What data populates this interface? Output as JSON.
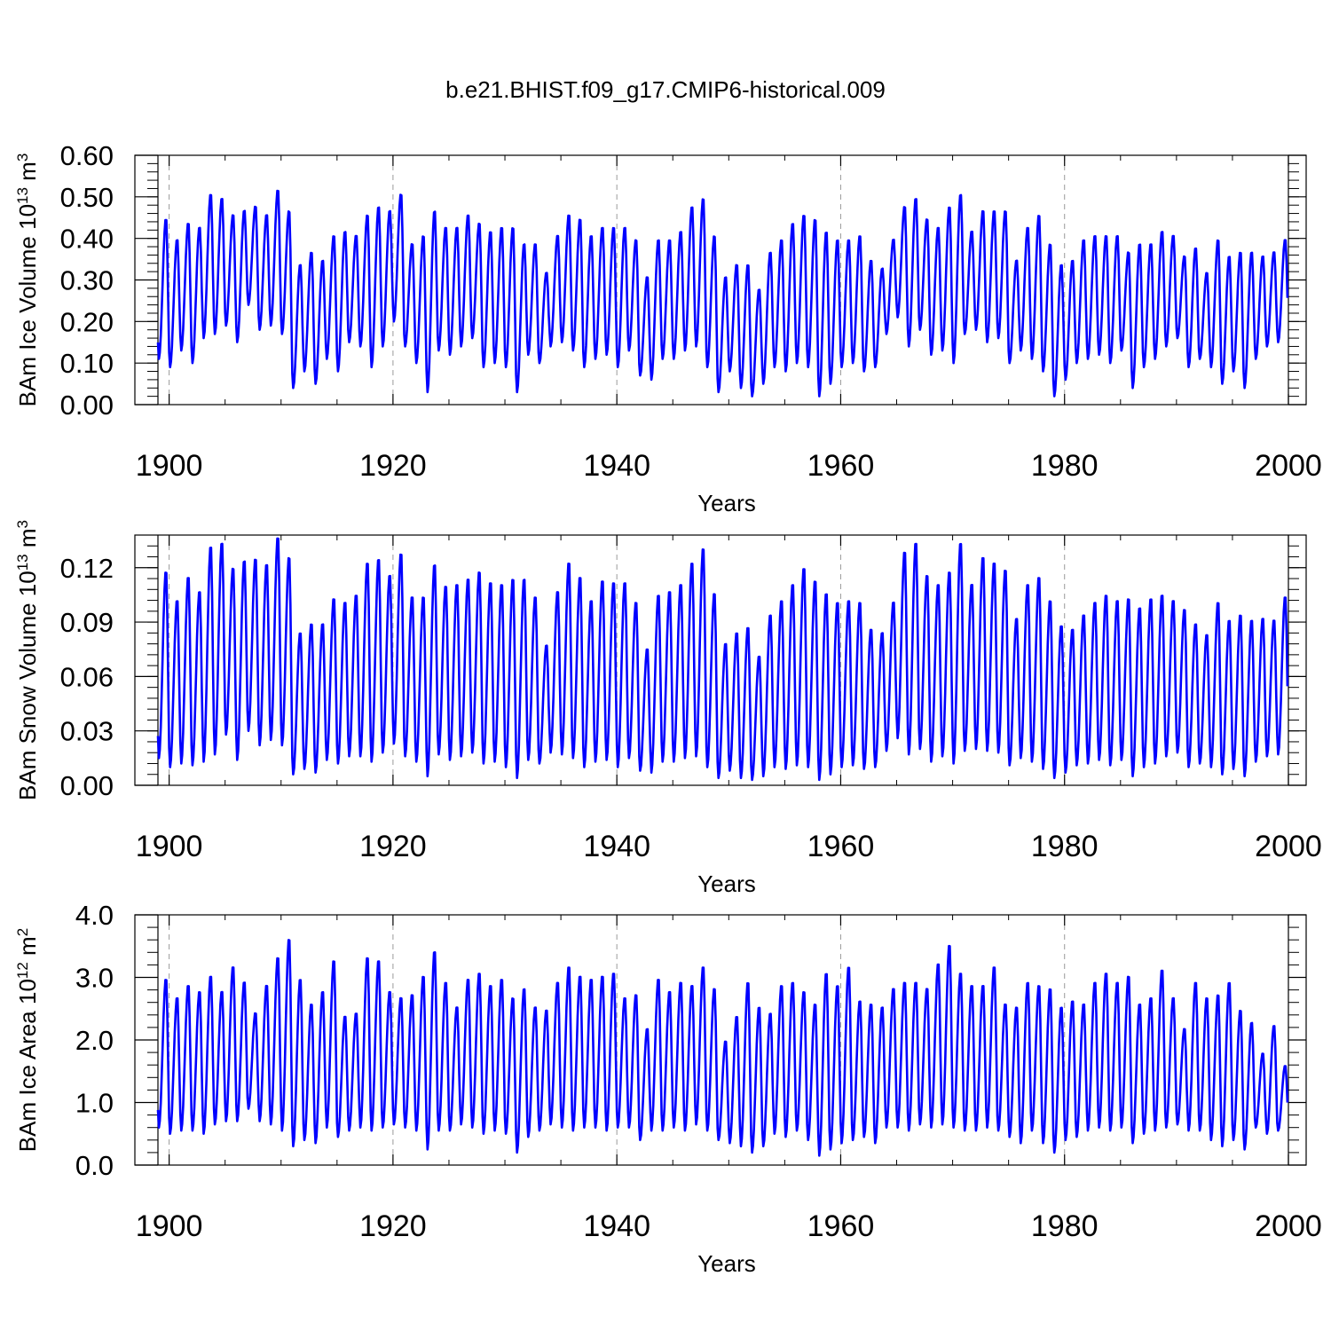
{
  "figure_title": "b.e21.BHIST.f09_g17.CMIP6-historical.009",
  "colors": {
    "line": "#0000ff",
    "axis": "#000000",
    "grid": "#9a9a9a",
    "background": "#ffffff"
  },
  "chart_data": [
    {
      "type": "line",
      "title": "",
      "xlabel": "Years",
      "ylabel": {
        "text": "BAm Ice Volume 10",
        "exponent": "13",
        "unit": " m",
        "unit_exponent": "3"
      },
      "xlim": [
        1899,
        2000
      ],
      "ylim": [
        0,
        0.6
      ],
      "xticks": [
        1900,
        1920,
        1940,
        1960,
        1980,
        2000
      ],
      "yticks": [
        0,
        0.1,
        0.2,
        0.3,
        0.4,
        0.5,
        0.6
      ],
      "ytick_labels": [
        "0.00",
        "0.10",
        "0.20",
        "0.30",
        "0.40",
        "0.50",
        "0.60"
      ],
      "grid": "x-dashed",
      "series": [
        {
          "name": "BAm Ice Volume",
          "x_start": 1899.0,
          "x_step": 1.0,
          "value_type": "annual min/max seasonal cycle",
          "maxima": [
            0.45,
            0.4,
            0.44,
            0.43,
            0.51,
            0.5,
            0.46,
            0.47,
            0.48,
            0.46,
            0.52,
            0.47,
            0.34,
            0.37,
            0.35,
            0.41,
            0.42,
            0.41,
            0.46,
            0.48,
            0.47,
            0.51,
            0.39,
            0.41,
            0.47,
            0.43,
            0.43,
            0.46,
            0.44,
            0.42,
            0.43,
            0.43,
            0.39,
            0.39,
            0.32,
            0.41,
            0.46,
            0.45,
            0.41,
            0.43,
            0.43,
            0.43,
            0.4,
            0.31,
            0.4,
            0.4,
            0.42,
            0.48,
            0.5,
            0.41,
            0.31,
            0.34,
            0.34,
            0.28,
            0.37,
            0.4,
            0.44,
            0.46,
            0.45,
            0.42,
            0.4,
            0.4,
            0.41,
            0.35,
            0.33,
            0.4,
            0.48,
            0.5,
            0.45,
            0.43,
            0.48,
            0.51,
            0.42,
            0.47,
            0.47,
            0.47,
            0.35,
            0.43,
            0.46,
            0.39,
            0.34,
            0.35,
            0.4,
            0.41,
            0.41,
            0.41,
            0.37,
            0.39,
            0.39,
            0.42,
            0.41,
            0.36,
            0.38,
            0.32,
            0.4,
            0.36,
            0.37,
            0.37,
            0.36,
            0.37,
            0.4
          ],
          "minima": [
            0.11,
            0.09,
            0.13,
            0.1,
            0.16,
            0.17,
            0.19,
            0.15,
            0.24,
            0.18,
            0.19,
            0.17,
            0.04,
            0.08,
            0.05,
            0.11,
            0.08,
            0.15,
            0.14,
            0.09,
            0.14,
            0.2,
            0.14,
            0.1,
            0.03,
            0.13,
            0.12,
            0.14,
            0.16,
            0.09,
            0.1,
            0.09,
            0.03,
            0.12,
            0.1,
            0.14,
            0.15,
            0.13,
            0.09,
            0.11,
            0.12,
            0.09,
            0.13,
            0.07,
            0.06,
            0.11,
            0.11,
            0.13,
            0.14,
            0.09,
            0.03,
            0.08,
            0.04,
            0.02,
            0.05,
            0.09,
            0.08,
            0.1,
            0.09,
            0.02,
            0.05,
            0.09,
            0.1,
            0.08,
            0.09,
            0.17,
            0.21,
            0.14,
            0.18,
            0.12,
            0.13,
            0.1,
            0.17,
            0.18,
            0.15,
            0.16,
            0.1,
            0.13,
            0.11,
            0.08,
            0.02,
            0.06,
            0.1,
            0.11,
            0.12,
            0.1,
            0.13,
            0.04,
            0.09,
            0.11,
            0.14,
            0.16,
            0.09,
            0.11,
            0.09,
            0.05,
            0.08,
            0.04,
            0.11,
            0.14,
            0.15
          ]
        }
      ]
    },
    {
      "type": "line",
      "title": "",
      "xlabel": "Years",
      "ylabel": {
        "text": "BAm Snow Volume 10",
        "exponent": "13",
        "unit": " m",
        "unit_exponent": "3"
      },
      "xlim": [
        1899,
        2000
      ],
      "ylim": [
        0,
        0.138
      ],
      "xticks": [
        1900,
        1920,
        1940,
        1960,
        1980,
        2000
      ],
      "yticks": [
        0,
        0.03,
        0.06,
        0.09,
        0.12
      ],
      "ytick_labels": [
        "0.00",
        "0.03",
        "0.06",
        "0.09",
        "0.12"
      ],
      "grid": "x-dashed",
      "series": [
        {
          "name": "BAm Snow Volume",
          "x_start": 1899.0,
          "x_step": 1.0,
          "value_type": "annual min/max seasonal cycle",
          "maxima": [
            0.119,
            0.103,
            0.116,
            0.108,
            0.133,
            0.135,
            0.121,
            0.125,
            0.126,
            0.123,
            0.138,
            0.127,
            0.085,
            0.09,
            0.09,
            0.104,
            0.102,
            0.106,
            0.124,
            0.126,
            0.117,
            0.129,
            0.105,
            0.105,
            0.123,
            0.111,
            0.112,
            0.115,
            0.119,
            0.113,
            0.112,
            0.115,
            0.115,
            0.105,
            0.078,
            0.108,
            0.124,
            0.116,
            0.103,
            0.114,
            0.113,
            0.113,
            0.102,
            0.076,
            0.106,
            0.108,
            0.112,
            0.124,
            0.132,
            0.107,
            0.079,
            0.085,
            0.088,
            0.072,
            0.095,
            0.103,
            0.112,
            0.121,
            0.114,
            0.107,
            0.102,
            0.103,
            0.102,
            0.087,
            0.085,
            0.102,
            0.13,
            0.135,
            0.117,
            0.112,
            0.119,
            0.135,
            0.112,
            0.127,
            0.124,
            0.12,
            0.093,
            0.112,
            0.116,
            0.103,
            0.089,
            0.087,
            0.095,
            0.102,
            0.106,
            0.103,
            0.104,
            0.099,
            0.104,
            0.106,
            0.103,
            0.098,
            0.09,
            0.084,
            0.102,
            0.092,
            0.095,
            0.092,
            0.093,
            0.092,
            0.105
          ],
          "minima": [
            0.015,
            0.01,
            0.012,
            0.011,
            0.013,
            0.017,
            0.028,
            0.014,
            0.03,
            0.022,
            0.025,
            0.022,
            0.006,
            0.009,
            0.007,
            0.014,
            0.012,
            0.016,
            0.016,
            0.013,
            0.018,
            0.023,
            0.016,
            0.013,
            0.005,
            0.017,
            0.014,
            0.016,
            0.018,
            0.012,
            0.013,
            0.01,
            0.004,
            0.014,
            0.012,
            0.018,
            0.017,
            0.015,
            0.01,
            0.013,
            0.014,
            0.01,
            0.015,
            0.008,
            0.007,
            0.013,
            0.013,
            0.015,
            0.016,
            0.01,
            0.004,
            0.008,
            0.004,
            0.003,
            0.005,
            0.01,
            0.009,
            0.011,
            0.01,
            0.003,
            0.006,
            0.01,
            0.011,
            0.009,
            0.01,
            0.019,
            0.026,
            0.017,
            0.02,
            0.013,
            0.016,
            0.012,
            0.019,
            0.02,
            0.019,
            0.018,
            0.011,
            0.015,
            0.013,
            0.009,
            0.004,
            0.007,
            0.011,
            0.012,
            0.014,
            0.011,
            0.014,
            0.005,
            0.01,
            0.012,
            0.016,
            0.018,
            0.01,
            0.012,
            0.01,
            0.006,
            0.009,
            0.005,
            0.013,
            0.016,
            0.017
          ]
        }
      ]
    },
    {
      "type": "line",
      "title": "",
      "xlabel": "Years",
      "ylabel": {
        "text": "BAm Ice Area 10",
        "exponent": "12",
        "unit": " m",
        "unit_exponent": "2"
      },
      "xlim": [
        1899,
        2000
      ],
      "ylim": [
        0,
        4
      ],
      "xticks": [
        1900,
        1920,
        1940,
        1960,
        1980,
        2000
      ],
      "yticks": [
        0,
        1,
        2,
        3,
        4
      ],
      "ytick_labels": [
        "0.0",
        "1.0",
        "2.0",
        "3.0",
        "4.0"
      ],
      "grid": "x-dashed",
      "series": [
        {
          "name": "BAm Ice Area",
          "x_start": 1899.0,
          "x_step": 1.0,
          "value_type": "annual min/max seasonal cycle",
          "maxima": [
            3.0,
            2.7,
            2.9,
            2.8,
            3.05,
            2.8,
            3.2,
            2.95,
            2.45,
            2.9,
            3.35,
            3.65,
            3.0,
            2.6,
            2.8,
            3.3,
            2.4,
            2.45,
            3.35,
            3.3,
            2.8,
            2.7,
            2.75,
            3.05,
            3.45,
            2.95,
            2.55,
            3.0,
            3.1,
            2.9,
            3.0,
            2.7,
            2.85,
            2.55,
            2.5,
            2.95,
            3.2,
            3.05,
            3.0,
            3.05,
            3.1,
            2.7,
            2.75,
            2.2,
            3.0,
            2.8,
            2.95,
            2.9,
            3.2,
            2.85,
            2.0,
            2.4,
            2.95,
            2.55,
            2.45,
            2.9,
            2.95,
            2.8,
            2.6,
            3.1,
            2.9,
            3.2,
            2.65,
            2.6,
            2.55,
            2.85,
            2.95,
            2.95,
            2.85,
            3.25,
            3.55,
            3.1,
            2.9,
            2.9,
            3.2,
            2.6,
            2.55,
            2.95,
            2.9,
            2.85,
            2.55,
            2.65,
            2.6,
            2.95,
            3.1,
            2.95,
            3.05,
            2.6,
            2.7,
            3.15,
            2.7,
            2.2,
            2.95,
            2.7,
            2.75,
            2.95,
            2.5,
            2.3,
            1.8,
            2.25,
            1.6
          ],
          "minima": [
            0.6,
            0.5,
            0.55,
            0.55,
            0.5,
            0.65,
            0.7,
            0.7,
            0.9,
            0.7,
            0.65,
            0.55,
            0.3,
            0.4,
            0.35,
            0.6,
            0.45,
            0.55,
            0.6,
            0.55,
            0.6,
            0.65,
            0.6,
            0.55,
            0.25,
            0.55,
            0.55,
            0.65,
            0.6,
            0.5,
            0.55,
            0.5,
            0.2,
            0.45,
            0.55,
            0.65,
            0.6,
            0.55,
            0.6,
            0.6,
            0.55,
            0.6,
            0.6,
            0.4,
            0.55,
            0.55,
            0.6,
            0.55,
            0.65,
            0.55,
            0.4,
            0.35,
            0.3,
            0.2,
            0.3,
            0.5,
            0.45,
            0.55,
            0.4,
            0.15,
            0.25,
            0.35,
            0.4,
            0.45,
            0.35,
            0.6,
            0.6,
            0.55,
            0.65,
            0.6,
            0.65,
            0.6,
            0.55,
            0.55,
            0.6,
            0.55,
            0.45,
            0.35,
            0.55,
            0.35,
            0.2,
            0.4,
            0.45,
            0.55,
            0.6,
            0.55,
            0.6,
            0.35,
            0.5,
            0.55,
            0.6,
            0.65,
            0.55,
            0.55,
            0.4,
            0.3,
            0.4,
            0.25,
            0.6,
            0.5,
            0.55
          ]
        }
      ]
    }
  ]
}
